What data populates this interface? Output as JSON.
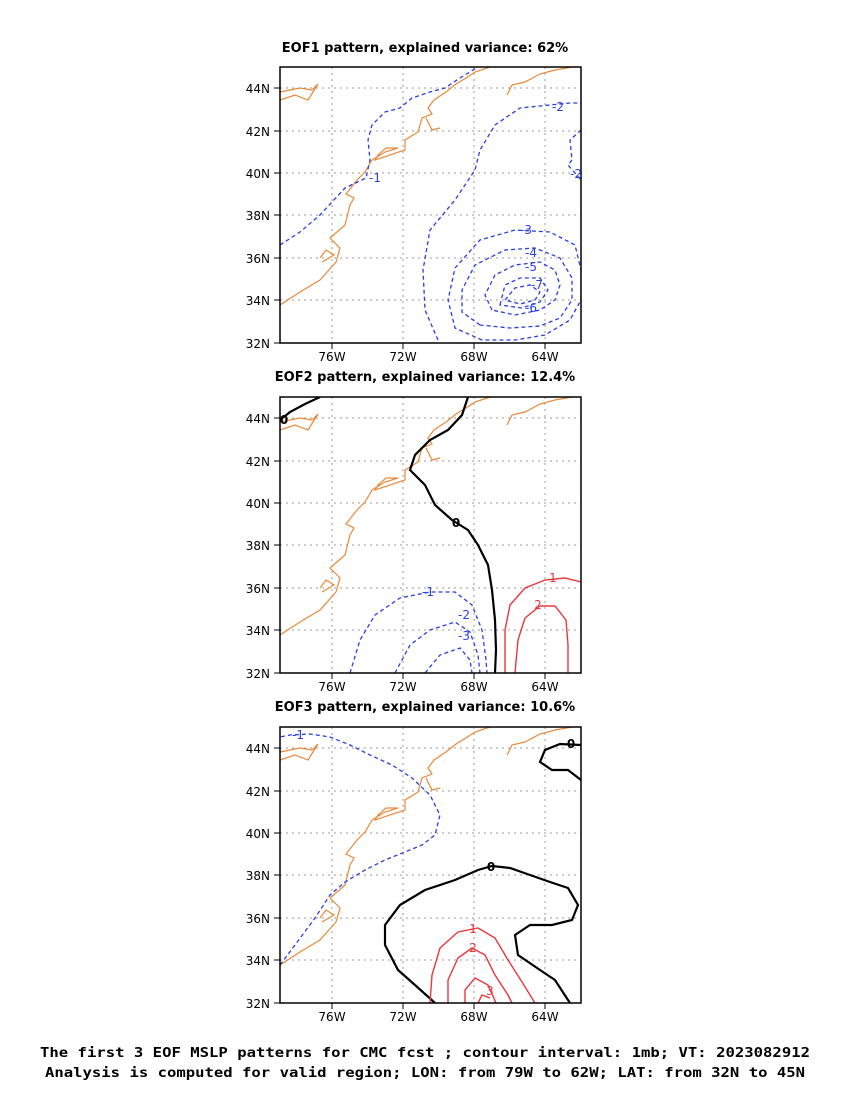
{
  "panels": [
    {
      "title": "EOF1 pattern, explained variance: 62%",
      "contour_labels": [
        {
          "text": "-1",
          "color": "#2a3fe0"
        },
        {
          "text": "-2",
          "color": "#2a3fe0"
        },
        {
          "text": "-2",
          "color": "#2a3fe0"
        },
        {
          "text": "-3",
          "color": "#2a3fe0"
        },
        {
          "text": "-4",
          "color": "#2a3fe0"
        },
        {
          "text": "-5",
          "color": "#2a3fe0"
        },
        {
          "text": "-7",
          "color": "#2a3fe0"
        },
        {
          "text": "-6",
          "color": "#2a3fe0"
        }
      ]
    },
    {
      "title": "EOF2 pattern, explained variance: 12.4%",
      "contour_labels": [
        {
          "text": "0",
          "color": "#000000"
        },
        {
          "text": "0",
          "color": "#000000"
        },
        {
          "text": "-1",
          "color": "#2a3fe0"
        },
        {
          "text": "-2",
          "color": "#2a3fe0"
        },
        {
          "text": "-3",
          "color": "#2a3fe0"
        },
        {
          "text": "1",
          "color": "#e8383c"
        },
        {
          "text": "2",
          "color": "#e8383c"
        }
      ]
    },
    {
      "title": "EOF3 pattern, explained variance: 10.6%",
      "contour_labels": [
        {
          "text": "-1",
          "color": "#2a3fe0"
        },
        {
          "text": "0",
          "color": "#000000"
        },
        {
          "text": "0",
          "color": "#000000"
        },
        {
          "text": "1",
          "color": "#e8383c"
        },
        {
          "text": "2",
          "color": "#e8383c"
        },
        {
          "text": "3",
          "color": "#e8383c"
        }
      ]
    }
  ],
  "lat_ticks": [
    "44N",
    "42N",
    "40N",
    "38N",
    "36N",
    "34N",
    "32N"
  ],
  "lon_ticks": [
    "76W",
    "72W",
    "68W",
    "64W"
  ],
  "caption_line1": "The first 3 EOF MSLP patterns for CMC fcst ; contour interval: 1mb; VT: 2023082912",
  "caption_line2": "Analysis is computed for valid region; LON: from 79W to 62W; LAT: from 32N to 45N",
  "colors": {
    "coast": "#e8893a",
    "negative": "#2a3fe0",
    "positive": "#e8383c",
    "zero": "#000000",
    "grid": "#999999"
  }
}
